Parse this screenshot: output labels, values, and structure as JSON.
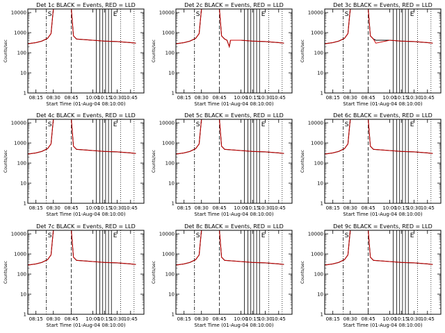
{
  "figure": {
    "x_tick_labels": [
      "08:15",
      "08:30",
      "08:45",
      "10:00",
      "10:15",
      "10:30",
      "10:45"
    ],
    "x_label": "Start Time (01-Aug-04 08:10:00)",
    "y_label": "Counts/sec",
    "y_tick_labels": [
      "1",
      "10",
      "100",
      "1000",
      "10000"
    ],
    "marker_labels": [
      "S",
      "E"
    ],
    "colors": {
      "events": "#000000",
      "lld": "#cc0000",
      "axes": "#000000"
    }
  },
  "chart_data": [
    {
      "type": "line",
      "title": "Det 1c BLACK = Events, RED = LLD",
      "ylim": [
        1,
        15000
      ],
      "yscale": "log",
      "x": [
        "08:10",
        "08:15",
        "08:20",
        "08:25",
        "08:28",
        "08:30",
        "08:35",
        "08:40",
        "08:45",
        "08:47",
        "08:50",
        "10:00",
        "10:15",
        "10:30",
        "10:45",
        "10:50"
      ],
      "series": [
        {
          "values": [
            280,
            320,
            380,
            520,
            900,
            15000,
            15000,
            15000,
            15000,
            700,
            480,
            420,
            380,
            360,
            320,
            300
          ]
        },
        {
          "values": [
            280,
            320,
            380,
            520,
            900,
            15000,
            15000,
            15000,
            15000,
            700,
            480,
            420,
            380,
            360,
            320,
            300
          ]
        }
      ]
    },
    {
      "type": "line",
      "title": "Det 2c BLACK = Events, RED = LLD",
      "ylim": [
        1,
        15000
      ],
      "yscale": "log",
      "x": [
        "08:10",
        "08:15",
        "08:20",
        "08:25",
        "08:28",
        "08:30",
        "08:35",
        "08:40",
        "08:45",
        "08:47",
        "08:50",
        "09:00",
        "09:10",
        "09:15",
        "10:00",
        "10:15",
        "10:30",
        "10:45",
        "10:50"
      ],
      "series": [
        {
          "values": [
            280,
            320,
            380,
            520,
            900,
            15000,
            15000,
            15000,
            15000,
            700,
            480,
            420,
            200,
            420,
            420,
            380,
            360,
            320,
            300
          ]
        },
        {
          "values": [
            280,
            320,
            380,
            520,
            900,
            15000,
            15000,
            15000,
            15000,
            700,
            480,
            420,
            200,
            420,
            420,
            380,
            360,
            320,
            300
          ]
        }
      ]
    },
    {
      "type": "line",
      "title": "Det 3c BLACK = Events, RED = LLD",
      "ylim": [
        1,
        15000
      ],
      "yscale": "log",
      "x": [
        "08:10",
        "08:15",
        "08:20",
        "08:25",
        "08:28",
        "08:30",
        "08:35",
        "08:40",
        "08:45",
        "08:47",
        "08:50",
        "09:00",
        "10:00",
        "10:15",
        "10:30",
        "10:45",
        "10:50"
      ],
      "series": [
        {
          "values": [
            280,
            320,
            380,
            520,
            900,
            15000,
            15000,
            15000,
            15000,
            700,
            480,
            420,
            420,
            380,
            360,
            320,
            300
          ]
        },
        {
          "values": [
            280,
            320,
            380,
            520,
            900,
            15000,
            15000,
            15000,
            15000,
            700,
            480,
            300,
            420,
            380,
            360,
            320,
            300
          ]
        }
      ]
    },
    {
      "type": "line",
      "title": "Det 4c BLACK = Events, RED = LLD",
      "ylim": [
        1,
        15000
      ],
      "yscale": "log",
      "x": [
        "08:10",
        "08:15",
        "08:20",
        "08:25",
        "08:28",
        "08:30",
        "08:35",
        "08:40",
        "08:45",
        "08:47",
        "08:50",
        "10:00",
        "10:15",
        "10:30",
        "10:45",
        "10:50"
      ],
      "series": [
        {
          "values": [
            280,
            320,
            380,
            520,
            900,
            15000,
            15000,
            15000,
            15000,
            700,
            480,
            420,
            380,
            360,
            320,
            300
          ]
        },
        {
          "values": [
            280,
            320,
            380,
            520,
            900,
            15000,
            15000,
            15000,
            15000,
            700,
            480,
            420,
            380,
            360,
            320,
            300
          ]
        }
      ]
    },
    {
      "type": "line",
      "title": "Det 5c BLACK = Events, RED = LLD",
      "ylim": [
        1,
        15000
      ],
      "yscale": "log",
      "x": [
        "08:10",
        "08:15",
        "08:20",
        "08:25",
        "08:28",
        "08:30",
        "08:35",
        "08:40",
        "08:45",
        "08:47",
        "08:50",
        "10:00",
        "10:15",
        "10:30",
        "10:45",
        "10:50"
      ],
      "series": [
        {
          "values": [
            280,
            320,
            380,
            520,
            900,
            15000,
            15000,
            15000,
            15000,
            700,
            480,
            420,
            380,
            360,
            320,
            300
          ]
        },
        {
          "values": [
            280,
            320,
            380,
            520,
            900,
            15000,
            15000,
            15000,
            15000,
            700,
            480,
            420,
            380,
            360,
            320,
            300
          ]
        }
      ]
    },
    {
      "type": "line",
      "title": "Det 6c BLACK = Events, RED = LLD",
      "ylim": [
        1,
        15000
      ],
      "yscale": "log",
      "x": [
        "08:10",
        "08:15",
        "08:20",
        "08:25",
        "08:28",
        "08:30",
        "08:35",
        "08:40",
        "08:45",
        "08:47",
        "08:50",
        "10:00",
        "10:15",
        "10:30",
        "10:45",
        "10:50"
      ],
      "series": [
        {
          "values": [
            280,
            320,
            380,
            520,
            900,
            15000,
            15000,
            15000,
            15000,
            700,
            480,
            420,
            380,
            360,
            320,
            300
          ]
        },
        {
          "values": [
            280,
            320,
            380,
            520,
            900,
            15000,
            15000,
            15000,
            15000,
            700,
            480,
            420,
            380,
            360,
            320,
            300
          ]
        }
      ]
    },
    {
      "type": "line",
      "title": "Det 7c BLACK = Events, RED = LLD",
      "ylim": [
        1,
        15000
      ],
      "yscale": "log",
      "x": [
        "08:10",
        "08:15",
        "08:20",
        "08:25",
        "08:28",
        "08:30",
        "08:35",
        "08:40",
        "08:45",
        "08:47",
        "08:50",
        "10:00",
        "10:15",
        "10:30",
        "10:45",
        "10:50"
      ],
      "series": [
        {
          "values": [
            280,
            320,
            380,
            520,
            900,
            15000,
            15000,
            15000,
            15000,
            700,
            480,
            420,
            380,
            360,
            320,
            300
          ]
        },
        {
          "values": [
            280,
            320,
            380,
            520,
            900,
            15000,
            15000,
            15000,
            15000,
            700,
            480,
            420,
            380,
            360,
            320,
            300
          ]
        }
      ]
    },
    {
      "type": "line",
      "title": "Det 8c BLACK = Events, RED = LLD",
      "ylim": [
        1,
        15000
      ],
      "yscale": "log",
      "x": [
        "08:10",
        "08:15",
        "08:20",
        "08:25",
        "08:28",
        "08:30",
        "08:35",
        "08:40",
        "08:45",
        "08:47",
        "08:50",
        "10:00",
        "10:15",
        "10:30",
        "10:45",
        "10:50"
      ],
      "series": [
        {
          "values": [
            280,
            320,
            380,
            520,
            900,
            15000,
            15000,
            15000,
            15000,
            700,
            480,
            420,
            380,
            360,
            320,
            300
          ]
        },
        {
          "values": [
            280,
            320,
            380,
            520,
            900,
            15000,
            15000,
            15000,
            15000,
            700,
            480,
            420,
            380,
            360,
            320,
            300
          ]
        }
      ]
    },
    {
      "type": "line",
      "title": "Det 9c BLACK = Events, RED = LLD",
      "ylim": [
        1,
        15000
      ],
      "yscale": "log",
      "x": [
        "08:10",
        "08:15",
        "08:20",
        "08:25",
        "08:28",
        "08:30",
        "08:35",
        "08:40",
        "08:45",
        "08:47",
        "08:50",
        "10:00",
        "10:15",
        "10:30",
        "10:45",
        "10:50"
      ],
      "series": [
        {
          "values": [
            280,
            320,
            380,
            520,
            900,
            15000,
            15000,
            15000,
            15000,
            700,
            480,
            420,
            380,
            360,
            320,
            300
          ]
        },
        {
          "values": [
            280,
            320,
            380,
            520,
            900,
            15000,
            15000,
            15000,
            15000,
            700,
            480,
            420,
            380,
            360,
            320,
            300
          ]
        }
      ]
    }
  ]
}
